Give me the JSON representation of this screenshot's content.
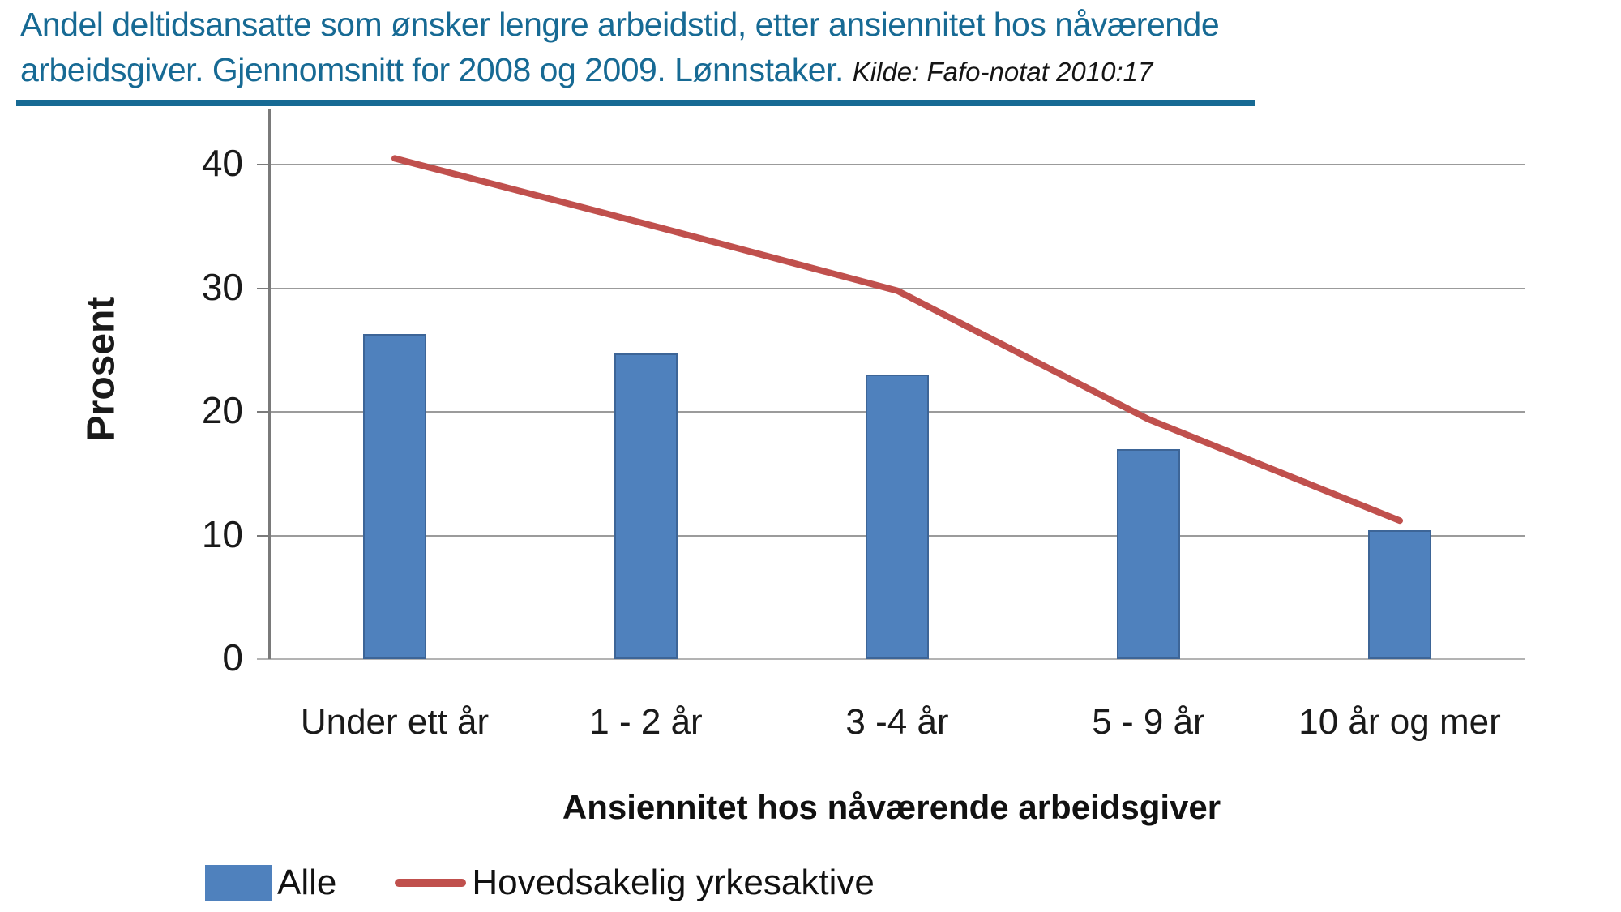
{
  "header": {
    "title_line1": "Andel deltidsansatte som ønsker lengre arbeidstid, etter ansiennitet hos nåværende",
    "title_line2": "arbeidsgiver. Gjennomsnitt for 2008 og 2009. Lønnstaker.",
    "source": "Kilde: Fafo-notat 2010:17",
    "accent_color": "#176a94"
  },
  "chart_data": {
    "type": "bar",
    "subtype": "bar-and-line-combo",
    "categories": [
      "Under ett år",
      "1 - 2 år",
      "3 -4 år",
      "5 - 9 år",
      "10 år og mer"
    ],
    "series": [
      {
        "name": "Alle",
        "type": "bar",
        "color": "#4f81bd",
        "values": [
          26.3,
          24.7,
          23,
          17,
          10.4
        ]
      },
      {
        "name": "Hovedsakelig yrkesaktive",
        "type": "line",
        "color": "#c0504d",
        "values": [
          40.5,
          35.2,
          29.8,
          19.4,
          11.2
        ]
      }
    ],
    "title": "Andel deltidsansatte som ønsker lengre arbeidstid, etter ansiennitet hos nåværende arbeidsgiver. Gjennomsnitt for 2008 og 2009. Lønnstaker.",
    "xlabel": "Ansiennitet hos nåværende arbeidsgiver",
    "ylabel": "Prosent",
    "yticks": [
      0,
      10,
      20,
      30,
      40
    ],
    "ylim": [
      0,
      44.5
    ],
    "grid": true,
    "legend_position": "bottom-left",
    "gridline_color": "#9b9b9b",
    "axis_color": "#7a7a7a"
  }
}
